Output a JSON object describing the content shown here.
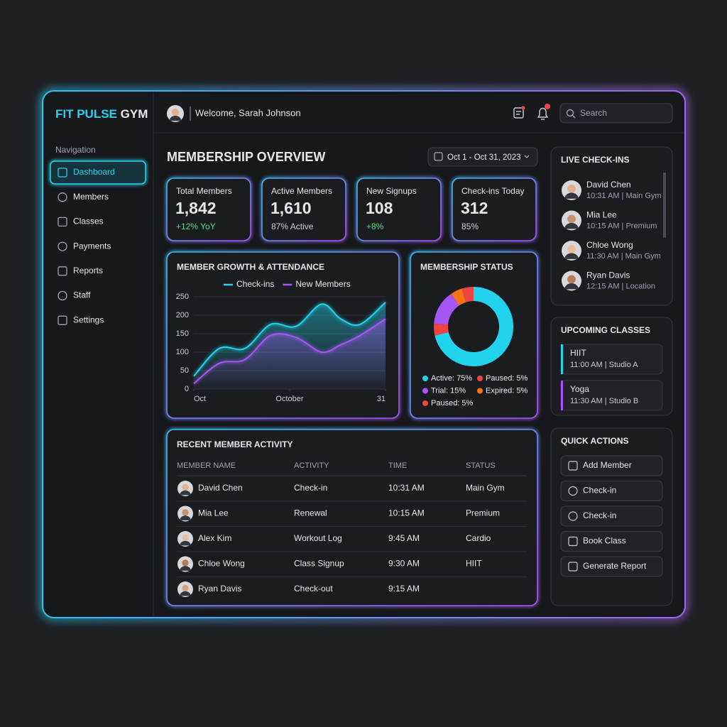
{
  "brand": {
    "accent": "FIT PULSE",
    "rest": "GYM"
  },
  "nav": {
    "heading": "Navigation",
    "items": [
      "Dashboard",
      "Members",
      "Classes",
      "Payments",
      "Reports",
      "Staff",
      "Settings"
    ],
    "active": 0
  },
  "header": {
    "welcome": "Welcome, Sarah Johnson",
    "search": "Search"
  },
  "overview": {
    "title": "MEMBERSHIP OVERVIEW",
    "date_range": "Oct 1 - Oct 31, 2023"
  },
  "kpis": [
    {
      "label": "Total Members",
      "value": "1,842",
      "note": "+12% YoY",
      "note_color": "#4ade80"
    },
    {
      "label": "Active Members",
      "value": "1,610",
      "note": "87% Active",
      "note_color": "#c9ccd3"
    },
    {
      "label": "New Signups",
      "value": "108",
      "note": "+8%",
      "note_color": "#4ade80"
    },
    {
      "label": "Check-ins Today",
      "value": "312",
      "note": "85%",
      "note_color": "#c9ccd3"
    }
  ],
  "chart_data": [
    {
      "type": "line",
      "title": "MEMBER GROWTH & ATTENDANCE",
      "x": [
        1,
        5,
        9,
        13,
        17,
        21,
        24,
        27,
        31
      ],
      "xlim": [
        1,
        31
      ],
      "xticks": [
        {
          "value": 1,
          "label": "Oct"
        },
        {
          "value": 16,
          "label": "October"
        },
        31
      ],
      "ylim": [
        0,
        250
      ],
      "yticks": [
        0,
        50,
        100,
        150,
        200,
        250
      ],
      "grid": true,
      "series": [
        {
          "name": "Check-ins",
          "color": "#22d3ee",
          "values": [
            35,
            110,
            110,
            175,
            170,
            230,
            190,
            175,
            235
          ]
        },
        {
          "name": "New Members",
          "color": "#a855f7",
          "values": [
            15,
            70,
            80,
            145,
            140,
            100,
            120,
            145,
            190
          ]
        }
      ]
    },
    {
      "type": "pie",
      "title": "MEMBERSHIP STATUS",
      "donut": true,
      "values": [
        75,
        5,
        15,
        5,
        5
      ],
      "value_labels": [
        "Active: 75%",
        "Paused: 5%",
        "Trial: 15%",
        "Expired: 5%",
        "Paused: 5%"
      ],
      "colors": [
        "#22d3ee",
        "#ef4444",
        "#a855f7",
        "#f97316",
        "#ef4444"
      ]
    }
  ],
  "activity": {
    "title": "RECENT MEMBER ACTIVITY",
    "columns": [
      "MEMBER NAME",
      "ACTIVITY",
      "TIME",
      "STATUS"
    ],
    "rows": [
      [
        "David Chen",
        "Check-in",
        "10:31 AM",
        "Main Gym"
      ],
      [
        "Mia Lee",
        "Renewal",
        "10:15 AM",
        "Premium"
      ],
      [
        "Alex Kim",
        "Workout Log",
        "9:45 AM",
        "Cardio"
      ],
      [
        "Chloe Wong",
        "Class Signup",
        "9:30 AM",
        "HIIT"
      ],
      [
        "Ryan Davis",
        "Check-out",
        "9:15 AM",
        null
      ]
    ]
  },
  "live_checkins": {
    "title": "LIVE CHECK-INS",
    "items": [
      {
        "name": "David Chen",
        "detail": "10:31 AM | Main Gym"
      },
      {
        "name": "Mia Lee",
        "detail": "10:15 AM | Premium"
      },
      {
        "name": "Chloe Wong",
        "detail": "11:30 AM | Main Gym"
      },
      {
        "name": "Ryan Davis",
        "detail": "12:15 AM | Location"
      }
    ]
  },
  "upcoming_classes": {
    "title": "UPCOMING CLASSES",
    "items": [
      {
        "name": "HIIT",
        "detail": "11:00 AM | Studio A",
        "color": "#22d3ee"
      },
      {
        "name": "Yoga",
        "detail": "11:30 AM | Studio B",
        "color": "#a855f7"
      }
    ]
  },
  "quick_actions": {
    "title": "QUICK ACTIONS",
    "items": [
      "Add Member",
      "Check-in",
      "Check-in",
      "Book Class",
      "Generate Report"
    ]
  }
}
